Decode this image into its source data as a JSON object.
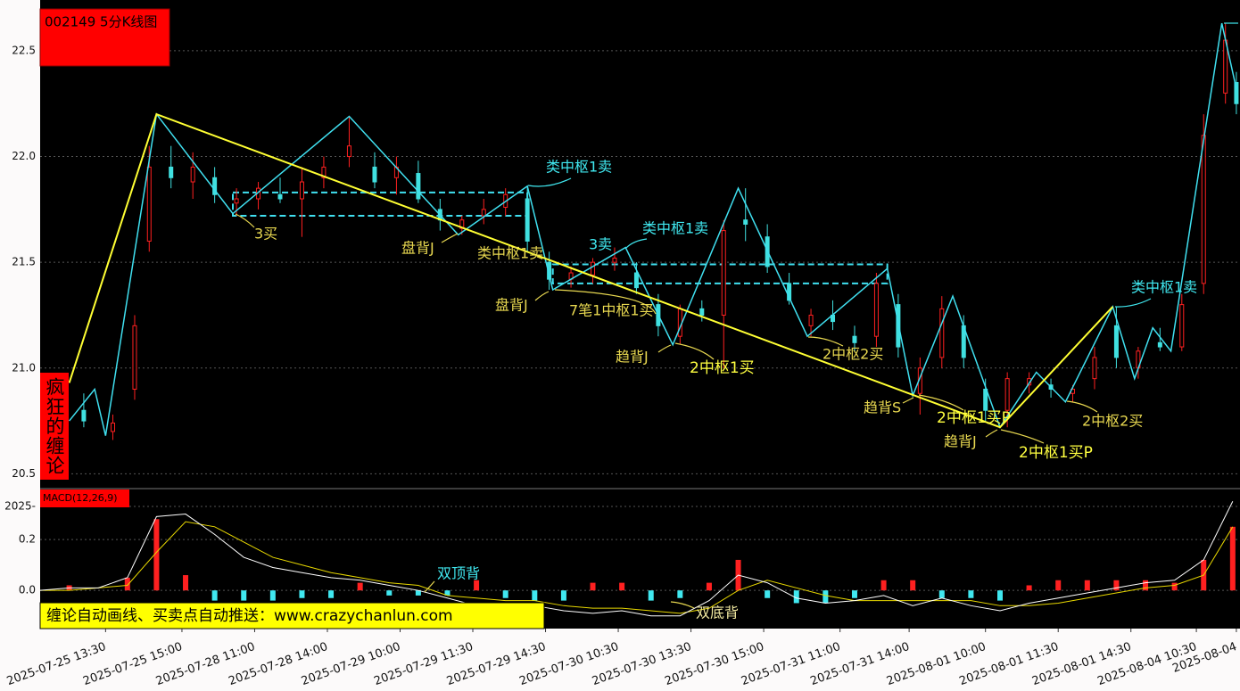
{
  "chart_data": [
    {
      "type": "candlestick",
      "title": "002149 5分K线图",
      "side_label": "疯狂的缠论",
      "banner": "缠论自动画线、买卖点自动推送：www.crazychanlun.com",
      "xlim": [
        0,
        330
      ],
      "ylim": [
        20.43,
        22.74
      ],
      "yticks": [
        22.5,
        {
          "value": 22.0,
          "label": "22.0"
        },
        21.5,
        {
          "value": 21.0,
          "label": "21.0"
        },
        20.5
      ],
      "grid": true,
      "up_color": "#ff2020",
      "down_color": "#40e0e0",
      "x": [
        4,
        12,
        20,
        26,
        30,
        36,
        42,
        48,
        54,
        60,
        66,
        72,
        78,
        85,
        92,
        98,
        104,
        110,
        116,
        122,
        128,
        134,
        140,
        146,
        152,
        158,
        164,
        170,
        176,
        182,
        188,
        194,
        200,
        206,
        212,
        218,
        224,
        230,
        236,
        242,
        248,
        254,
        260,
        266,
        272,
        278,
        284,
        290,
        296,
        302,
        308,
        314,
        320,
        326,
        329
      ],
      "open": [
        20.66,
        20.8,
        20.7,
        20.9,
        21.6,
        21.95,
        21.88,
        21.9,
        21.78,
        21.8,
        21.82,
        21.8,
        21.9,
        22.0,
        21.95,
        21.9,
        21.92,
        21.75,
        21.66,
        21.72,
        21.76,
        21.8,
        21.5,
        21.42,
        21.44,
        21.5,
        21.45,
        21.3,
        21.15,
        21.28,
        21.25,
        21.7,
        21.62,
        21.4,
        21.2,
        21.25,
        21.15,
        21.15,
        21.3,
        20.88,
        21.05,
        21.2,
        20.9,
        20.8,
        20.92,
        20.92,
        20.88,
        20.95,
        21.2,
        21.0,
        21.12,
        21.1,
        21.4,
        22.3,
        22.35
      ],
      "high": [
        20.74,
        20.88,
        20.78,
        21.25,
        22.05,
        22.05,
        22.02,
        21.95,
        21.85,
        21.88,
        21.9,
        21.95,
        22.0,
        22.19,
        22.02,
        22.0,
        21.98,
        21.8,
        21.72,
        21.8,
        21.85,
        21.86,
        21.55,
        21.48,
        21.52,
        21.57,
        21.5,
        21.35,
        21.3,
        21.32,
        21.7,
        21.85,
        21.68,
        21.45,
        21.28,
        21.32,
        21.2,
        21.45,
        21.35,
        21.05,
        21.34,
        21.25,
        20.95,
        20.98,
        20.98,
        20.95,
        20.92,
        21.1,
        21.29,
        21.1,
        21.19,
        21.35,
        22.2,
        22.63,
        22.4
      ],
      "low": [
        20.63,
        20.72,
        20.66,
        20.85,
        21.55,
        21.85,
        21.8,
        21.78,
        21.72,
        21.75,
        21.78,
        21.62,
        21.85,
        21.95,
        21.85,
        21.82,
        21.78,
        21.65,
        21.63,
        21.68,
        21.72,
        21.55,
        21.37,
        21.38,
        21.4,
        21.46,
        21.35,
        21.15,
        21.11,
        21.22,
        21.0,
        21.6,
        21.45,
        21.3,
        21.15,
        21.18,
        21.08,
        21.1,
        21.05,
        20.78,
        21.0,
        21.0,
        20.75,
        20.72,
        20.88,
        20.86,
        20.84,
        20.9,
        21.0,
        20.95,
        21.08,
        21.08,
        21.35,
        22.25,
        22.2
      ],
      "close": [
        20.7,
        20.75,
        20.74,
        21.2,
        21.95,
        21.9,
        21.95,
        21.82,
        21.8,
        21.85,
        21.8,
        21.88,
        21.95,
        22.05,
        21.88,
        21.95,
        21.8,
        21.7,
        21.7,
        21.75,
        21.82,
        21.6,
        21.42,
        21.45,
        21.5,
        21.52,
        21.38,
        21.2,
        21.28,
        21.25,
        21.65,
        21.68,
        21.48,
        21.32,
        21.25,
        21.22,
        21.12,
        21.4,
        21.1,
        21.0,
        21.28,
        21.05,
        20.8,
        20.95,
        20.95,
        20.9,
        20.9,
        21.05,
        21.05,
        21.08,
        21.1,
        21.3,
        22.1,
        22.55,
        22.25
      ],
      "strokes": {
        "color": "#40e0f0",
        "x": [
          8,
          15,
          18,
          32,
          53,
          85,
          115,
          134,
          141,
          161,
          174,
          192,
          211,
          233,
          240,
          251,
          264,
          274,
          282,
          295,
          301,
          306,
          311,
          325,
          329
        ],
        "y": [
          20.75,
          20.9,
          20.68,
          22.2,
          21.73,
          22.19,
          21.63,
          21.86,
          21.37,
          21.57,
          21.11,
          21.85,
          21.15,
          21.47,
          20.87,
          21.34,
          20.72,
          20.98,
          20.84,
          21.29,
          20.95,
          21.19,
          21.08,
          22.63,
          22.32
        ]
      },
      "segments": {
        "color": "#ffff33",
        "x": [
          8,
          32,
          264,
          295
        ],
        "y": [
          20.93,
          22.2,
          20.72,
          21.29
        ]
      },
      "pivots": [
        {
          "xlim": [
            53,
            134
          ],
          "ylim": [
            21.72,
            21.83
          ]
        },
        {
          "xlim": [
            141,
            233
          ],
          "ylim": [
            21.4,
            21.49
          ]
        }
      ],
      "annotations": [
        "3买",
        "盘背J",
        "类中枢1卖",
        "类中枢1卖",
        "3卖",
        "类中枢1卖",
        "盘背J",
        "7笔1中枢1买",
        "趋背J",
        "2中枢1买",
        "2中枢2买",
        "趋背S",
        "2中枢1买P",
        "趋背J",
        "2中枢1买P",
        "2中枢2买",
        "类中枢1卖"
      ]
    },
    {
      "type": "macd",
      "title": "MACD(12,26,9)",
      "xlim": [
        0,
        330
      ],
      "ylim": [
        -0.15,
        0.4
      ],
      "yticks": [
        {
          "value": 0.33,
          "label": "2025-"
        },
        0.2,
        {
          "value": 0,
          "label": "0.0"
        }
      ],
      "xticks": [
        {
          "value": 18,
          "label": "2025-07-25 13:30"
        },
        {
          "value": 39,
          "label": "2025-07-25 15:00"
        },
        {
          "value": 59,
          "label": "2025-07-28 11:00"
        },
        {
          "value": 79,
          "label": "2025-07-28 14:00"
        },
        {
          "value": 99,
          "label": "2025-07-29 10:00"
        },
        {
          "value": 119,
          "label": "2025-07-29 11:30"
        },
        {
          "value": 139,
          "label": "2025-07-29 14:30"
        },
        {
          "value": 159,
          "label": "2025-07-30 10:30"
        },
        {
          "value": 179,
          "label": "2025-07-30 13:30"
        },
        {
          "value": 199,
          "label": "2025-07-30 15:00"
        },
        {
          "value": 220,
          "label": "2025-07-31 11:00"
        },
        {
          "value": 239,
          "label": "2025-07-31 14:00"
        },
        {
          "value": 260,
          "label": "2025-08-01 10:00"
        },
        {
          "value": 280,
          "label": "2025-08-01 11:30"
        },
        {
          "value": 300,
          "label": "2025-08-01 14:30"
        },
        {
          "value": 318,
          "label": "2025-08-04 10:30"
        },
        {
          "value": 329,
          "label": "2025-08-04"
        }
      ],
      "x": [
        0,
        8,
        16,
        24,
        32,
        40,
        48,
        56,
        64,
        72,
        80,
        88,
        96,
        104,
        112,
        120,
        128,
        136,
        144,
        152,
        160,
        168,
        176,
        184,
        192,
        200,
        208,
        216,
        224,
        232,
        240,
        248,
        256,
        264,
        272,
        280,
        288,
        296,
        304,
        312,
        320,
        328
      ],
      "dif": {
        "color": "#ffffff",
        "values": [
          0.0,
          0.01,
          0.01,
          0.05,
          0.29,
          0.3,
          0.22,
          0.13,
          0.09,
          0.07,
          0.05,
          0.04,
          0.02,
          0.0,
          -0.03,
          -0.06,
          -0.05,
          -0.06,
          -0.08,
          -0.09,
          -0.08,
          -0.1,
          -0.1,
          -0.04,
          0.06,
          0.03,
          -0.03,
          -0.05,
          -0.04,
          -0.02,
          -0.06,
          -0.03,
          -0.06,
          -0.08,
          -0.05,
          -0.03,
          -0.01,
          0.01,
          0.03,
          0.04,
          0.12,
          0.35
        ]
      },
      "dea": {
        "color": "#e8d800",
        "values": [
          0.0,
          0.0,
          0.01,
          0.02,
          0.15,
          0.27,
          0.25,
          0.19,
          0.13,
          0.1,
          0.07,
          0.05,
          0.03,
          0.02,
          -0.02,
          -0.03,
          -0.04,
          -0.04,
          -0.06,
          -0.07,
          -0.07,
          -0.08,
          -0.09,
          -0.07,
          0.0,
          0.04,
          0.01,
          -0.02,
          -0.04,
          -0.04,
          -0.04,
          -0.04,
          -0.04,
          -0.06,
          -0.06,
          -0.05,
          -0.03,
          -0.01,
          0.01,
          0.02,
          0.06,
          0.25
        ]
      },
      "hist": [
        0.0,
        0.02,
        0.0,
        0.05,
        0.28,
        0.06,
        -0.04,
        -0.04,
        -0.04,
        -0.03,
        -0.03,
        0.03,
        -0.02,
        -0.02,
        -0.02,
        0.04,
        -0.03,
        -0.04,
        -0.04,
        0.03,
        0.03,
        -0.04,
        -0.03,
        0.03,
        0.12,
        -0.03,
        -0.05,
        -0.05,
        -0.03,
        0.04,
        0.04,
        -0.03,
        -0.03,
        -0.04,
        0.02,
        0.04,
        0.04,
        0.04,
        0.04,
        0.03,
        0.12,
        0.25
      ],
      "up_color": "#ff2020",
      "down_color": "#40e8f0",
      "grid": true,
      "annotations": [
        "双顶背",
        "双底背"
      ]
    }
  ]
}
